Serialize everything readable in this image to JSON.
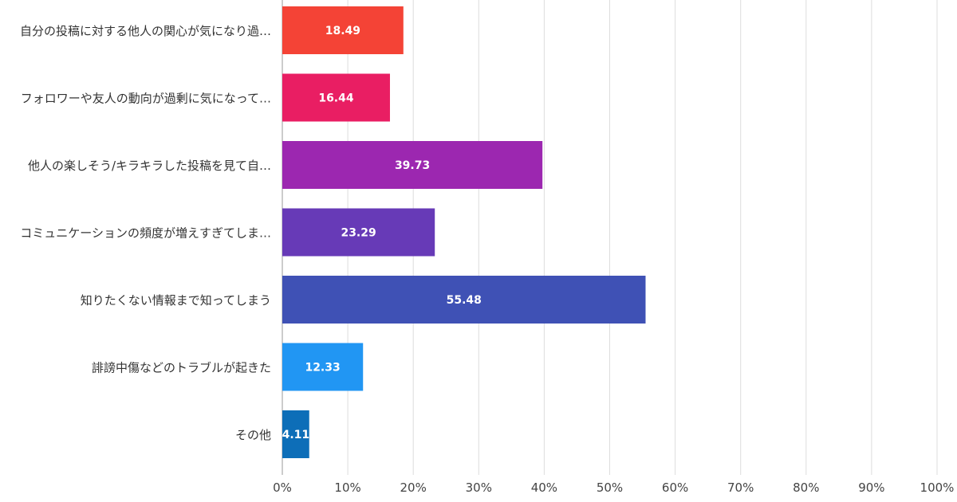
{
  "chart_data": {
    "type": "bar",
    "orientation": "horizontal",
    "categories": [
      "自分の投稿に対する他人の関心が気になり過…",
      "フォロワーや友人の動向が過剰に気になって…",
      "他人の楽しそう/キラキラした投稿を見て自…",
      "コミュニケーションの頻度が増えすぎてしま…",
      "知りたくない情報まで知ってしまう",
      "誹謗中傷などのトラブルが起きた",
      "その他"
    ],
    "values": [
      18.49,
      16.44,
      39.73,
      23.29,
      55.48,
      12.33,
      4.11
    ],
    "value_labels": [
      "18.49",
      "16.44",
      "39.73",
      "23.29",
      "55.48",
      "12.33",
      "4.11"
    ],
    "colors": [
      "#f44336",
      "#e91e63",
      "#9c27b0",
      "#673ab7",
      "#3f51b5",
      "#2196f3",
      "#0d6eb8"
    ],
    "xlim": [
      0,
      100
    ],
    "x_ticks": [
      "0%",
      "10%",
      "20%",
      "30%",
      "40%",
      "50%",
      "60%",
      "70%",
      "80%",
      "90%",
      "100%"
    ],
    "grid": true,
    "title": "",
    "xlabel": "",
    "ylabel": ""
  }
}
